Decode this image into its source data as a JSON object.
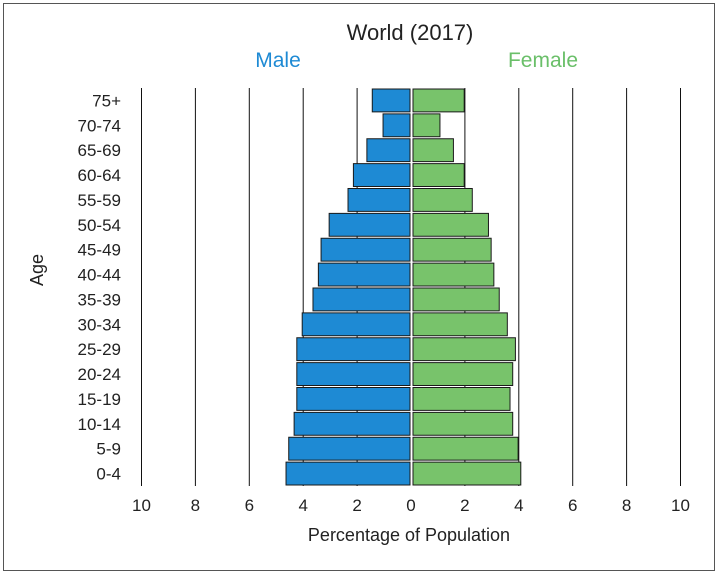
{
  "chart_data": {
    "type": "bar",
    "title": "World (2017)",
    "male_label": "Male",
    "female_label": "Female",
    "xlabel": "Percentage of Population",
    "ylabel": "Age",
    "xlim": [
      -10,
      10
    ],
    "x_ticks": [
      "10",
      "8",
      "6",
      "4",
      "2",
      "0",
      "2",
      "4",
      "6",
      "8",
      "10"
    ],
    "categories": [
      "75+",
      "70-74",
      "65-69",
      "60-64",
      "55-59",
      "50-54",
      "45-49",
      "40-44",
      "35-39",
      "30-34",
      "25-29",
      "20-24",
      "15-19",
      "10-14",
      "5-9",
      "0-4"
    ],
    "series": [
      {
        "name": "Male",
        "values": [
          1.4,
          1.0,
          1.6,
          2.1,
          2.3,
          3.0,
          3.3,
          3.4,
          3.6,
          4.0,
          4.2,
          4.2,
          4.2,
          4.3,
          4.5,
          4.6
        ]
      },
      {
        "name": "Female",
        "values": [
          1.9,
          1.0,
          1.5,
          1.9,
          2.2,
          2.8,
          2.9,
          3.0,
          3.2,
          3.5,
          3.8,
          3.7,
          3.6,
          3.7,
          3.9,
          4.0
        ]
      }
    ],
    "colors": {
      "male": "#1e8ad4",
      "female": "#78c36b",
      "male_text": "#1e8ad4",
      "female_text": "#6abf69",
      "grid": "#111111",
      "bar_edge": "#1a1a1a"
    }
  }
}
